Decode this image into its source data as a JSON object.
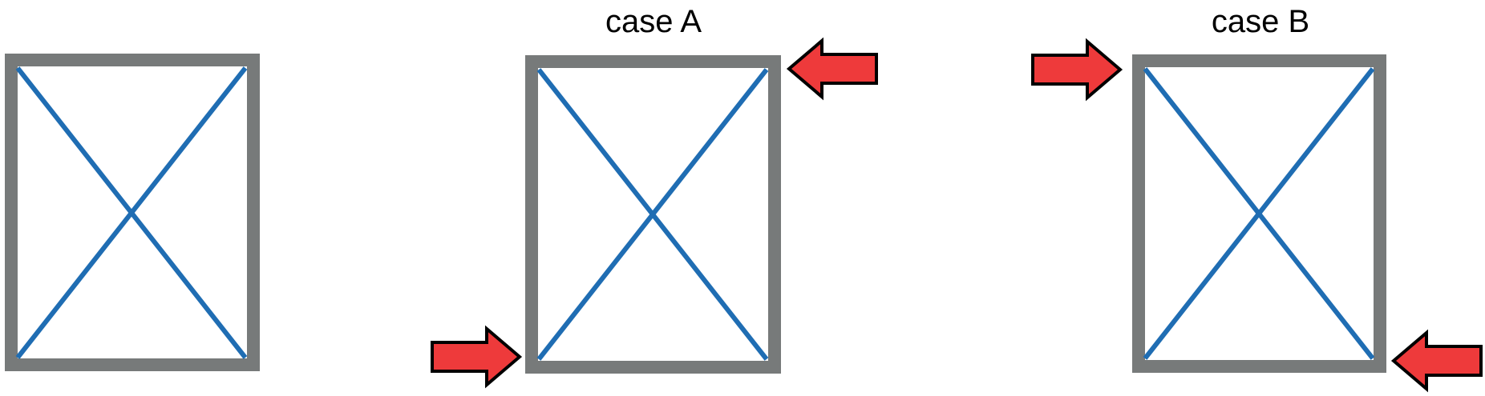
{
  "diagram": {
    "panels": [
      {
        "id": "unloaded",
        "label": "",
        "loads": []
      },
      {
        "id": "case-a",
        "label": "case A",
        "loads": [
          "top-right-pointing-left",
          "bottom-left-pointing-right"
        ]
      },
      {
        "id": "case-b",
        "label": "case B",
        "loads": [
          "top-left-pointing-right",
          "bottom-right-pointing-left"
        ]
      }
    ],
    "colors": {
      "frame": "#777a7a",
      "brace": "#1f6db3",
      "arrow_fill": "#ee3a3b",
      "arrow_outline": "#000000"
    }
  }
}
